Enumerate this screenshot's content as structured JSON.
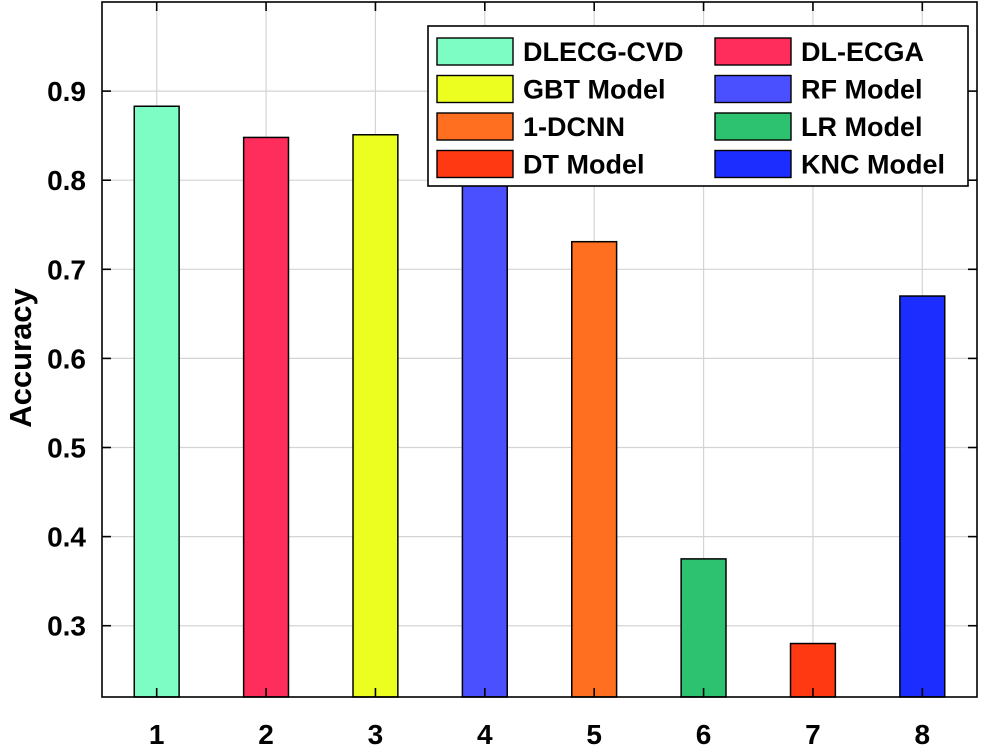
{
  "chart_data": {
    "type": "bar",
    "title": "",
    "xlabel": "",
    "ylabel": "Accuracy",
    "categories": [
      "1",
      "2",
      "3",
      "4",
      "5",
      "6",
      "7",
      "8"
    ],
    "values": [
      0.883,
      0.848,
      0.851,
      0.8,
      0.731,
      0.375,
      0.28,
      0.67
    ],
    "bar_colors": [
      "#7dfdc3",
      "#ff2d5c",
      "#ecfe1f",
      "#4a50ff",
      "#ff6f1f",
      "#2cc26f",
      "#ff3a12",
      "#1c2eff"
    ],
    "ylim": [
      0.22,
      1.0
    ],
    "yticks": [
      0.3,
      0.4,
      0.5,
      0.6,
      0.7,
      0.8,
      0.9
    ],
    "ytick_labels": [
      "0.3",
      "0.4",
      "0.5",
      "0.6",
      "0.7",
      "0.8",
      "0.9"
    ],
    "grid": true,
    "legend": {
      "placement": "top-right",
      "columns": 2,
      "entries": [
        {
          "label": "DLECG-CVD",
          "color": "#7dfdc3"
        },
        {
          "label": "DL-ECGA",
          "color": "#ff2d5c"
        },
        {
          "label": "GBT Model",
          "color": "#ecfe1f"
        },
        {
          "label": "RF Model",
          "color": "#4a50ff"
        },
        {
          "label": "1-DCNN",
          "color": "#ff6f1f"
        },
        {
          "label": "LR Model",
          "color": "#2cc26f"
        },
        {
          "label": "DT Model",
          "color": "#ff3a12"
        },
        {
          "label": "KNC Model",
          "color": "#1c2eff"
        }
      ]
    }
  }
}
